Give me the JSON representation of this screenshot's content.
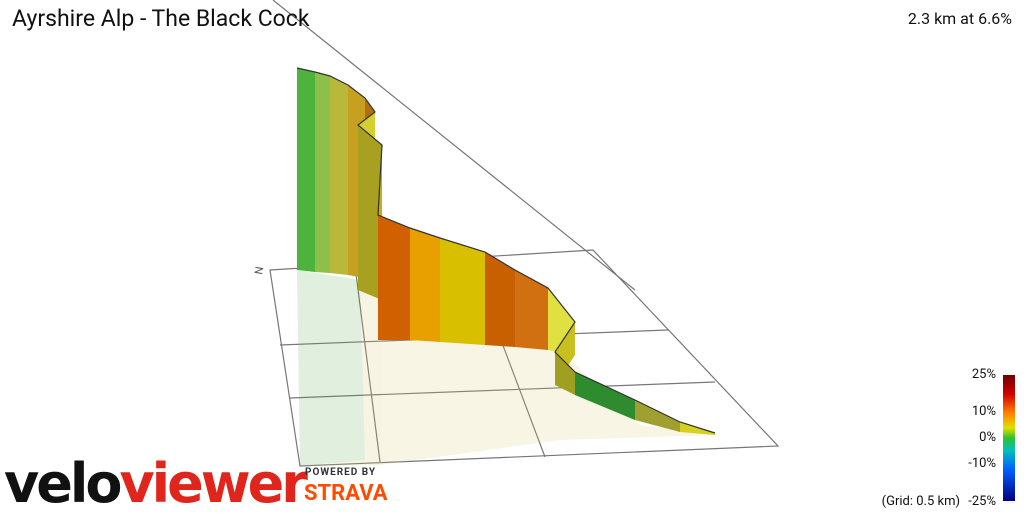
{
  "header": {
    "title": "Ayrshire Alp - The Black Cock",
    "summary": "2.3 km at 6.6%"
  },
  "legend": {
    "ticks": [
      "25%",
      "10%",
      "0%",
      "-10%",
      "-25%"
    ],
    "grid_note": "(Grid: 0.5 km)"
  },
  "branding": {
    "logo_left": "velo",
    "logo_right": "viewer",
    "powered_by": "POWERED BY",
    "partner": "STRAVA"
  },
  "compass": "N"
}
